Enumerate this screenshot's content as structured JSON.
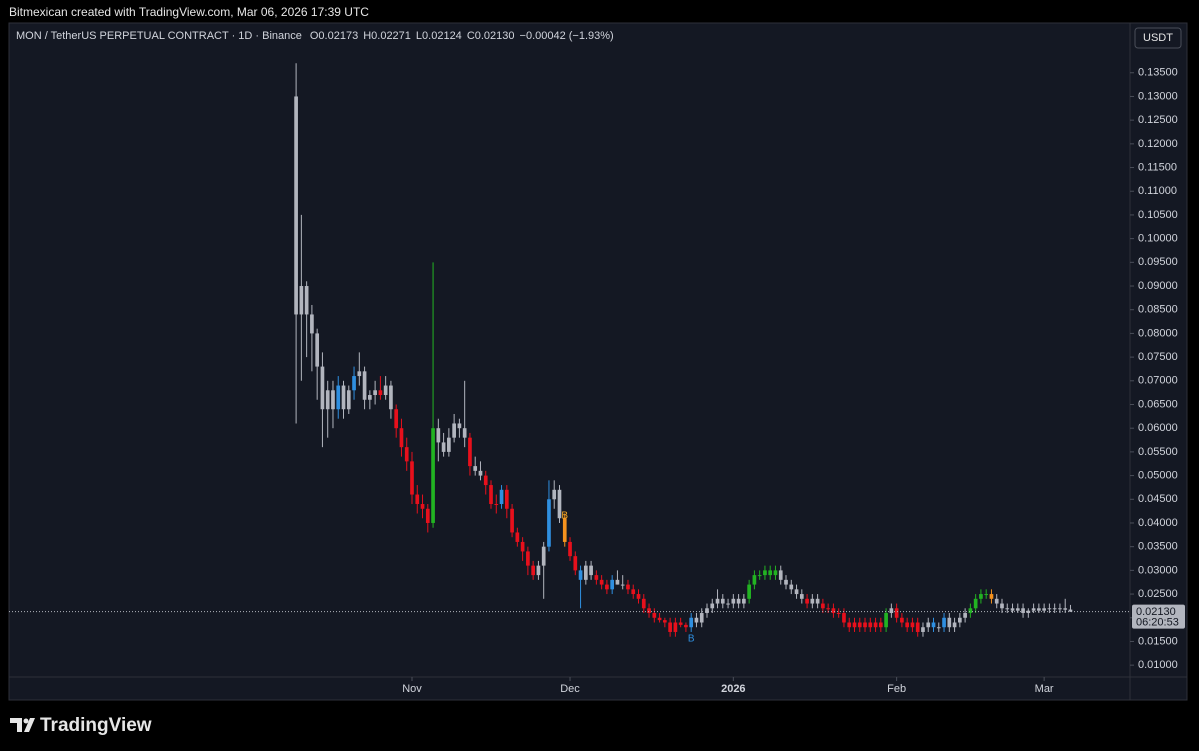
{
  "header": "Bitmexican created with TradingView.com, Mar 06, 2026 17:39 UTC",
  "footer": "TradingView",
  "chart_data": {
    "type": "candlestick",
    "legend": {
      "symbol": "MON / TetherUS PERPETUAL CONTRACT · 1D · Binance",
      "ohlc": [
        "O0.02173",
        "H0.02271",
        "L0.02124",
        "C0.02130"
      ],
      "change": "−0.00042 (−1.93%)"
    },
    "currency": "USDT",
    "last_price": {
      "value": 0.0213,
      "label": "0.02130",
      "countdown": "06:20:53"
    },
    "annotations": [
      {
        "text": "B",
        "index": 51,
        "value": 0.0415,
        "color": "#f5a623"
      },
      {
        "text": "B",
        "index": 75,
        "value": 0.0155,
        "color": "#2f8fe0"
      }
    ],
    "xlim": [
      -54.5,
      158.3
    ],
    "xticks": [
      {
        "value": 22,
        "label": "Nov"
      },
      {
        "value": 52,
        "label": "Dec"
      },
      {
        "value": 83,
        "label": "2026"
      },
      {
        "value": 114,
        "label": "Feb"
      },
      {
        "value": 142,
        "label": "Mar"
      }
    ],
    "ylim": [
      0.0075,
      0.1455
    ],
    "yticks": [
      {
        "value": 0.01,
        "label": "0.01000"
      },
      {
        "value": 0.015,
        "label": "0.01500"
      },
      {
        "value": 0.02,
        "label": "0.02000"
      },
      {
        "value": 0.025,
        "label": "0.02500"
      },
      {
        "value": 0.03,
        "label": "0.03000"
      },
      {
        "value": 0.035,
        "label": "0.03500"
      },
      {
        "value": 0.04,
        "label": "0.04000"
      },
      {
        "value": 0.045,
        "label": "0.04500"
      },
      {
        "value": 0.05,
        "label": "0.05000"
      },
      {
        "value": 0.055,
        "label": "0.05500"
      },
      {
        "value": 0.06,
        "label": "0.06000"
      },
      {
        "value": 0.065,
        "label": "0.06500"
      },
      {
        "value": 0.07,
        "label": "0.07000"
      },
      {
        "value": 0.075,
        "label": "0.07500"
      },
      {
        "value": 0.08,
        "label": "0.08000"
      },
      {
        "value": 0.085,
        "label": "0.08500"
      },
      {
        "value": 0.09,
        "label": "0.09000"
      },
      {
        "value": 0.095,
        "label": "0.09500"
      },
      {
        "value": 0.1,
        "label": "0.10000"
      },
      {
        "value": 0.105,
        "label": "0.10500"
      },
      {
        "value": 0.11,
        "label": "0.11000"
      },
      {
        "value": 0.115,
        "label": "0.11500"
      },
      {
        "value": 0.12,
        "label": "0.12000"
      },
      {
        "value": 0.125,
        "label": "0.12500"
      },
      {
        "value": 0.13,
        "label": "0.13000"
      },
      {
        "value": 0.135,
        "label": "0.13500"
      }
    ],
    "ohlc": [
      [
        0.13,
        0.137,
        0.061,
        0.084
      ],
      [
        0.084,
        0.105,
        0.07,
        0.09
      ],
      [
        0.09,
        0.091,
        0.075,
        0.084
      ],
      [
        0.084,
        0.086,
        0.072,
        0.08
      ],
      [
        0.08,
        0.081,
        0.066,
        0.073
      ],
      [
        0.073,
        0.076,
        0.056,
        0.064
      ],
      [
        0.064,
        0.07,
        0.058,
        0.068
      ],
      [
        0.068,
        0.07,
        0.06,
        0.064
      ],
      [
        0.064,
        0.071,
        0.062,
        0.069
      ],
      [
        0.069,
        0.07,
        0.062,
        0.064
      ],
      [
        0.064,
        0.069,
        0.063,
        0.068
      ],
      [
        0.068,
        0.073,
        0.066,
        0.071
      ],
      [
        0.071,
        0.076,
        0.069,
        0.072
      ],
      [
        0.072,
        0.073,
        0.064,
        0.066
      ],
      [
        0.066,
        0.068,
        0.064,
        0.067
      ],
      [
        0.067,
        0.07,
        0.065,
        0.068
      ],
      [
        0.068,
        0.071,
        0.066,
        0.067
      ],
      [
        0.067,
        0.071,
        0.066,
        0.069
      ],
      [
        0.069,
        0.07,
        0.062,
        0.064
      ],
      [
        0.064,
        0.065,
        0.058,
        0.06
      ],
      [
        0.06,
        0.062,
        0.054,
        0.056
      ],
      [
        0.056,
        0.058,
        0.051,
        0.053
      ],
      [
        0.053,
        0.055,
        0.044,
        0.046
      ],
      [
        0.046,
        0.048,
        0.042,
        0.044
      ],
      [
        0.044,
        0.046,
        0.041,
        0.043
      ],
      [
        0.043,
        0.044,
        0.038,
        0.04
      ],
      [
        0.04,
        0.095,
        0.039,
        0.06
      ],
      [
        0.06,
        0.062,
        0.053,
        0.057
      ],
      [
        0.057,
        0.059,
        0.054,
        0.055
      ],
      [
        0.055,
        0.06,
        0.054,
        0.058
      ],
      [
        0.058,
        0.063,
        0.057,
        0.061
      ],
      [
        0.061,
        0.062,
        0.058,
        0.06
      ],
      [
        0.06,
        0.07,
        0.056,
        0.058
      ],
      [
        0.058,
        0.059,
        0.05,
        0.052
      ],
      [
        0.052,
        0.054,
        0.05,
        0.051
      ],
      [
        0.051,
        0.053,
        0.049,
        0.05
      ],
      [
        0.05,
        0.051,
        0.046,
        0.048
      ],
      [
        0.048,
        0.049,
        0.043,
        0.044
      ],
      [
        0.044,
        0.046,
        0.042,
        0.044
      ],
      [
        0.044,
        0.048,
        0.043,
        0.047
      ],
      [
        0.047,
        0.048,
        0.041,
        0.043
      ],
      [
        0.043,
        0.044,
        0.037,
        0.038
      ],
      [
        0.038,
        0.039,
        0.035,
        0.036
      ],
      [
        0.036,
        0.037,
        0.032,
        0.034
      ],
      [
        0.034,
        0.035,
        0.029,
        0.031
      ],
      [
        0.031,
        0.032,
        0.028,
        0.029
      ],
      [
        0.029,
        0.032,
        0.028,
        0.031
      ],
      [
        0.031,
        0.036,
        0.024,
        0.035
      ],
      [
        0.035,
        0.049,
        0.034,
        0.045
      ],
      [
        0.045,
        0.049,
        0.043,
        0.047
      ],
      [
        0.047,
        0.048,
        0.04,
        0.041
      ],
      [
        0.041,
        0.042,
        0.035,
        0.036
      ],
      [
        0.036,
        0.037,
        0.032,
        0.033
      ],
      [
        0.033,
        0.034,
        0.029,
        0.03
      ],
      [
        0.03,
        0.031,
        0.022,
        0.028
      ],
      [
        0.028,
        0.032,
        0.027,
        0.031
      ],
      [
        0.031,
        0.032,
        0.028,
        0.029
      ],
      [
        0.029,
        0.03,
        0.027,
        0.028
      ],
      [
        0.028,
        0.029,
        0.026,
        0.027
      ],
      [
        0.027,
        0.028,
        0.025,
        0.026
      ],
      [
        0.026,
        0.029,
        0.025,
        0.028
      ],
      [
        0.028,
        0.03,
        0.027,
        0.027
      ],
      [
        0.027,
        0.029,
        0.026,
        0.027
      ],
      [
        0.027,
        0.028,
        0.025,
        0.026
      ],
      [
        0.026,
        0.027,
        0.024,
        0.025
      ],
      [
        0.025,
        0.026,
        0.023,
        0.024
      ],
      [
        0.024,
        0.025,
        0.021,
        0.022
      ],
      [
        0.022,
        0.023,
        0.02,
        0.021
      ],
      [
        0.021,
        0.022,
        0.019,
        0.02
      ],
      [
        0.02,
        0.021,
        0.019,
        0.0195
      ],
      [
        0.0195,
        0.02,
        0.018,
        0.019
      ],
      [
        0.019,
        0.02,
        0.016,
        0.017
      ],
      [
        0.017,
        0.02,
        0.016,
        0.019
      ],
      [
        0.019,
        0.02,
        0.018,
        0.0185
      ],
      [
        0.0185,
        0.019,
        0.017,
        0.018
      ],
      [
        0.018,
        0.021,
        0.017,
        0.02
      ],
      [
        0.02,
        0.021,
        0.018,
        0.019
      ],
      [
        0.019,
        0.022,
        0.018,
        0.021
      ],
      [
        0.021,
        0.023,
        0.02,
        0.022
      ],
      [
        0.022,
        0.024,
        0.021,
        0.023
      ],
      [
        0.023,
        0.026,
        0.022,
        0.024
      ],
      [
        0.024,
        0.025,
        0.022,
        0.023
      ],
      [
        0.023,
        0.024,
        0.022,
        0.023
      ],
      [
        0.023,
        0.025,
        0.022,
        0.024
      ],
      [
        0.024,
        0.025,
        0.022,
        0.023
      ],
      [
        0.023,
        0.025,
        0.022,
        0.024
      ],
      [
        0.024,
        0.028,
        0.023,
        0.027
      ],
      [
        0.027,
        0.03,
        0.026,
        0.029
      ],
      [
        0.029,
        0.03,
        0.028,
        0.029
      ],
      [
        0.029,
        0.031,
        0.028,
        0.03
      ],
      [
        0.03,
        0.031,
        0.028,
        0.029
      ],
      [
        0.029,
        0.031,
        0.028,
        0.03
      ],
      [
        0.03,
        0.031,
        0.027,
        0.028
      ],
      [
        0.028,
        0.029,
        0.026,
        0.027
      ],
      [
        0.027,
        0.028,
        0.025,
        0.026
      ],
      [
        0.026,
        0.027,
        0.024,
        0.025
      ],
      [
        0.025,
        0.026,
        0.023,
        0.024
      ],
      [
        0.024,
        0.025,
        0.022,
        0.023
      ],
      [
        0.023,
        0.025,
        0.022,
        0.024
      ],
      [
        0.024,
        0.025,
        0.022,
        0.023
      ],
      [
        0.023,
        0.024,
        0.021,
        0.022
      ],
      [
        0.022,
        0.023,
        0.021,
        0.022
      ],
      [
        0.022,
        0.023,
        0.02,
        0.021
      ],
      [
        0.021,
        0.022,
        0.02,
        0.021
      ],
      [
        0.021,
        0.022,
        0.018,
        0.019
      ],
      [
        0.019,
        0.02,
        0.017,
        0.018
      ],
      [
        0.018,
        0.02,
        0.017,
        0.019
      ],
      [
        0.019,
        0.02,
        0.017,
        0.018
      ],
      [
        0.018,
        0.02,
        0.017,
        0.019
      ],
      [
        0.019,
        0.02,
        0.017,
        0.018
      ],
      [
        0.018,
        0.02,
        0.017,
        0.019
      ],
      [
        0.019,
        0.02,
        0.017,
        0.018
      ],
      [
        0.018,
        0.022,
        0.017,
        0.021
      ],
      [
        0.021,
        0.023,
        0.02,
        0.022
      ],
      [
        0.022,
        0.023,
        0.019,
        0.02
      ],
      [
        0.02,
        0.021,
        0.018,
        0.019
      ],
      [
        0.019,
        0.02,
        0.017,
        0.018
      ],
      [
        0.018,
        0.02,
        0.017,
        0.019
      ],
      [
        0.019,
        0.02,
        0.016,
        0.017
      ],
      [
        0.017,
        0.019,
        0.016,
        0.018
      ],
      [
        0.018,
        0.02,
        0.017,
        0.019
      ],
      [
        0.019,
        0.02,
        0.017,
        0.018
      ],
      [
        0.018,
        0.019,
        0.017,
        0.018
      ],
      [
        0.018,
        0.021,
        0.017,
        0.02
      ],
      [
        0.02,
        0.021,
        0.017,
        0.018
      ],
      [
        0.018,
        0.02,
        0.017,
        0.019
      ],
      [
        0.019,
        0.021,
        0.018,
        0.02
      ],
      [
        0.02,
        0.022,
        0.019,
        0.021
      ],
      [
        0.021,
        0.023,
        0.02,
        0.022
      ],
      [
        0.022,
        0.025,
        0.021,
        0.024
      ],
      [
        0.024,
        0.026,
        0.023,
        0.025
      ],
      [
        0.025,
        0.026,
        0.024,
        0.025
      ],
      [
        0.025,
        0.026,
        0.023,
        0.024
      ],
      [
        0.024,
        0.025,
        0.022,
        0.023
      ],
      [
        0.023,
        0.024,
        0.021,
        0.022
      ],
      [
        0.022,
        0.023,
        0.021,
        0.022
      ],
      [
        0.022,
        0.023,
        0.021,
        0.0215
      ],
      [
        0.0215,
        0.023,
        0.021,
        0.022
      ],
      [
        0.022,
        0.023,
        0.02,
        0.021
      ],
      [
        0.021,
        0.022,
        0.02,
        0.0215
      ],
      [
        0.0215,
        0.023,
        0.021,
        0.022
      ],
      [
        0.022,
        0.023,
        0.021,
        0.0215
      ],
      [
        0.0215,
        0.023,
        0.021,
        0.022
      ],
      [
        0.022,
        0.023,
        0.021,
        0.022
      ],
      [
        0.022,
        0.023,
        0.021,
        0.0218
      ],
      [
        0.0218,
        0.023,
        0.021,
        0.022
      ],
      [
        0.022,
        0.024,
        0.021,
        0.0217
      ],
      [
        0.02173,
        0.02271,
        0.02124,
        0.0213
      ]
    ],
    "colors": [
      "#b2b5be",
      "#b2b5be",
      "#b2b5be",
      "#b2b5be",
      "#b2b5be",
      "#b2b5be",
      "#b2b5be",
      "#b2b5be",
      "#2f8fe0",
      "#b2b5be",
      "#b2b5be",
      "#2f8fe0",
      "#b2b5be",
      "#b2b5be",
      "#b2b5be",
      "#b2b5be",
      "#e8101c",
      "#b2b5be",
      "#b2b5be",
      "#e8101c",
      "#e8101c",
      "#e8101c",
      "#e8101c",
      "#e8101c",
      "#e8101c",
      "#e8101c",
      "#22b322",
      "#b2b5be",
      "#b2b5be",
      "#b2b5be",
      "#b2b5be",
      "#b2b5be",
      "#b2b5be",
      "#e8101c",
      "#b2b5be",
      "#b2b5be",
      "#e8101c",
      "#e8101c",
      "#e8101c",
      "#2f8fe0",
      "#e8101c",
      "#e8101c",
      "#e8101c",
      "#e8101c",
      "#e8101c",
      "#e8101c",
      "#b2b5be",
      "#b2b5be",
      "#2f8fe0",
      "#b2b5be",
      "#b2b5be",
      "#f5921e",
      "#e8101c",
      "#e8101c",
      "#2f8fe0",
      "#b2b5be",
      "#b2b5be",
      "#e8101c",
      "#e8101c",
      "#e8101c",
      "#2f8fe0",
      "#b2b5be",
      "#b2b5be",
      "#e8101c",
      "#e8101c",
      "#e8101c",
      "#e8101c",
      "#e8101c",
      "#e8101c",
      "#e8101c",
      "#e8101c",
      "#e8101c",
      "#e8101c",
      "#e8101c",
      "#e8101c",
      "#2f8fe0",
      "#b2b5be",
      "#b2b5be",
      "#b2b5be",
      "#b2b5be",
      "#b2b5be",
      "#b2b5be",
      "#b2b5be",
      "#b2b5be",
      "#b2b5be",
      "#b2b5be",
      "#22b322",
      "#22b322",
      "#22b322",
      "#22b322",
      "#22b322",
      "#22b322",
      "#b2b5be",
      "#b2b5be",
      "#b2b5be",
      "#b2b5be",
      "#b2b5be",
      "#e8101c",
      "#b2b5be",
      "#b2b5be",
      "#e8101c",
      "#e8101c",
      "#e8101c",
      "#e8101c",
      "#e8101c",
      "#e8101c",
      "#e8101c",
      "#e8101c",
      "#e8101c",
      "#e8101c",
      "#e8101c",
      "#e8101c",
      "#22b322",
      "#b2b5be",
      "#e8101c",
      "#e8101c",
      "#e8101c",
      "#e8101c",
      "#e8101c",
      "#b2b5be",
      "#b2b5be",
      "#2f8fe0",
      "#b2b5be",
      "#2f8fe0",
      "#b2b5be",
      "#b2b5be",
      "#b2b5be",
      "#b2b5be",
      "#22b322",
      "#22b322",
      "#22b322",
      "#22b322",
      "#f5921e",
      "#b2b5be",
      "#b2b5be",
      "#b2b5be",
      "#b2b5be",
      "#b2b5be",
      "#b2b5be",
      "#b2b5be",
      "#b2b5be",
      "#b2b5be",
      "#b2b5be",
      "#b2b5be",
      "#b2b5be",
      "#b2b5be",
      "#b2b5be",
      "#b2b5be"
    ]
  }
}
